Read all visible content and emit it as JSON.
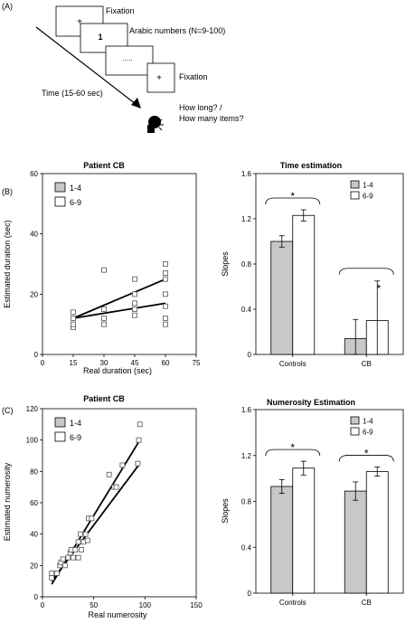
{
  "panels": [
    "(A)",
    "(B)",
    "(C)"
  ],
  "panel_a": {
    "screen1": "+",
    "screen2": "1",
    "screen3": ".....",
    "screen4": "+",
    "fixation_1": "Fixation",
    "arabic_numbers": "Arabic numbers (N=9-100)",
    "fixation_2": "Fixation",
    "time": "Time (15-60 sec)",
    "question_1": "How long? /",
    "question_2": "How many items?"
  },
  "chart_data": [
    {
      "id": "b-left",
      "type": "scatter",
      "title": "Patient CB",
      "xlabel": "Real duration (sec)",
      "ylabel": "Estimated duration (sec)",
      "xlim": [
        0,
        75
      ],
      "ylim": [
        0,
        60
      ],
      "xticks": [
        0,
        15,
        30,
        45,
        60,
        75
      ],
      "yticks": [
        0,
        20,
        40,
        60
      ],
      "legend": {
        "position": "top-left",
        "entries": [
          {
            "name": "1-4",
            "color": "#c8c8c8"
          },
          {
            "name": "6-9",
            "color": "#ffffff"
          }
        ]
      },
      "points": [
        [
          15,
          9
        ],
        [
          15,
          10
        ],
        [
          15,
          12
        ],
        [
          15,
          14
        ],
        [
          30,
          10
        ],
        [
          30,
          12
        ],
        [
          30,
          15
        ],
        [
          30,
          28
        ],
        [
          45,
          13
        ],
        [
          45,
          15
        ],
        [
          45,
          17
        ],
        [
          45,
          20
        ],
        [
          45,
          25
        ],
        [
          60,
          10
        ],
        [
          60,
          12
        ],
        [
          60,
          16
        ],
        [
          60,
          20
        ],
        [
          60,
          25
        ],
        [
          60,
          27
        ],
        [
          60,
          30
        ]
      ],
      "lines": [
        {
          "x": [
            15,
            60
          ],
          "y": [
            12,
            25
          ]
        },
        {
          "x": [
            15,
            60
          ],
          "y": [
            12,
            17
          ]
        }
      ]
    },
    {
      "id": "b-right",
      "type": "bar",
      "title": "Time estimation",
      "xlabel": "",
      "ylabel": "Slopes",
      "ylim": [
        0,
        1.6
      ],
      "yticks": [
        "0",
        "0.4",
        "0.8",
        "1.2",
        "1.6"
      ],
      "categories": [
        "Controls",
        "CB"
      ],
      "series": [
        {
          "name": "1-4",
          "color": "#c8c8c8",
          "values": [
            1.0,
            0.14
          ],
          "errors": [
            0.05,
            0.17
          ]
        },
        {
          "name": "6-9",
          "color": "#ffffff",
          "values": [
            1.23,
            0.3
          ],
          "errors": [
            0.05,
            0.35
          ]
        }
      ],
      "legend": {
        "position": "top-right"
      },
      "annotations": [
        "*",
        "*"
      ]
    },
    {
      "id": "c-left",
      "type": "scatter",
      "title": "Patient CB",
      "xlabel": "Real numerosity",
      "ylabel": "Estimated numerosity",
      "xlim": [
        0,
        150
      ],
      "ylim": [
        0,
        120
      ],
      "xticks": [
        0,
        50,
        100,
        150
      ],
      "yticks": [
        0,
        20,
        40,
        60,
        80,
        100,
        120
      ],
      "legend": {
        "position": "top-left",
        "entries": [
          {
            "name": "1-4",
            "color": "#c8c8c8"
          },
          {
            "name": "6-9",
            "color": "#ffffff"
          }
        ]
      },
      "points": [
        [
          9,
          12
        ],
        [
          9,
          15
        ],
        [
          14,
          15
        ],
        [
          17,
          20
        ],
        [
          18,
          22
        ],
        [
          20,
          24
        ],
        [
          22,
          20
        ],
        [
          25,
          25
        ],
        [
          27,
          28
        ],
        [
          28,
          30
        ],
        [
          30,
          25
        ],
        [
          32,
          30
        ],
        [
          35,
          25
        ],
        [
          35,
          35
        ],
        [
          37,
          40
        ],
        [
          38,
          30
        ],
        [
          40,
          35
        ],
        [
          42,
          40
        ],
        [
          44,
          36
        ],
        [
          45,
          50
        ],
        [
          48,
          50
        ],
        [
          65,
          78
        ],
        [
          70,
          70
        ],
        [
          72,
          70
        ],
        [
          78,
          84
        ],
        [
          93,
          85
        ],
        [
          94,
          100
        ],
        [
          95,
          110
        ]
      ],
      "lines": [
        {
          "x": [
            9,
            95
          ],
          "y": [
            8,
            100
          ]
        },
        {
          "x": [
            9,
            95
          ],
          "y": [
            10,
            85
          ]
        }
      ]
    },
    {
      "id": "c-right",
      "type": "bar",
      "title": "Numerosity  Estimation",
      "xlabel": "",
      "ylabel": "Slopes",
      "ylim": [
        0,
        1.6
      ],
      "yticks": [
        "0",
        "0.4",
        "0.8",
        "1.2",
        "1.6"
      ],
      "categories": [
        "Controls",
        "CB"
      ],
      "series": [
        {
          "name": "1-4",
          "color": "#c8c8c8",
          "values": [
            0.93,
            0.89
          ],
          "errors": [
            0.06,
            0.08
          ]
        },
        {
          "name": "6-9",
          "color": "#ffffff",
          "values": [
            1.09,
            1.06
          ],
          "errors": [
            0.06,
            0.04
          ]
        }
      ],
      "legend": {
        "position": "top-right"
      },
      "annotations": [
        "*",
        "*"
      ]
    }
  ]
}
